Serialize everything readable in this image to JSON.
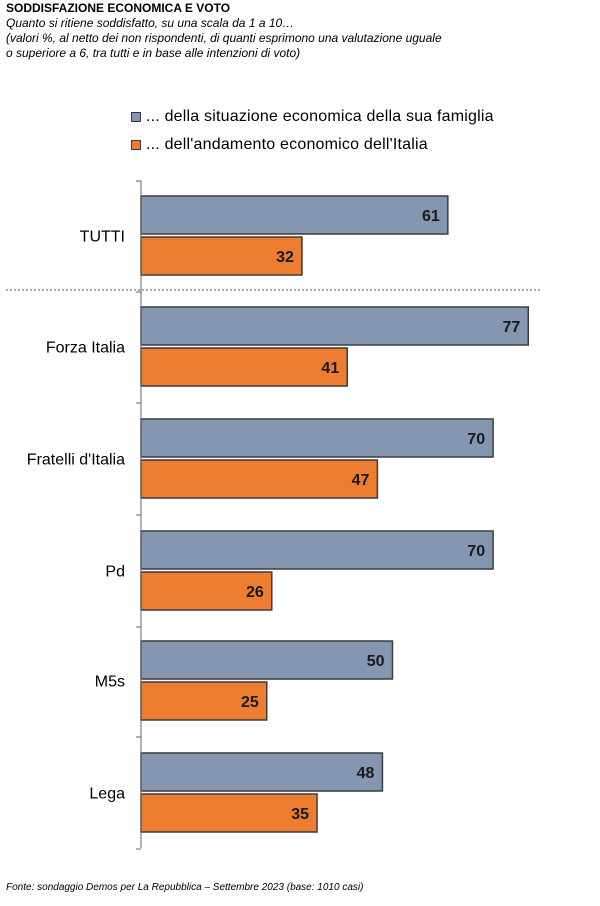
{
  "header": {
    "title": "SODDISFAZIONE ECONOMICA E VOTO",
    "subtitle_line1": "Quanto si ritiene soddisfatto, su una scala da 1 a 10…",
    "subtitle_line2": "(valori %, al netto dei non rispondenti, di quanti esprimono una valutazione uguale",
    "subtitle_line3": "o superiore a 6, tra tutti e in base alle intenzioni di voto)"
  },
  "footer": {
    "source": "Fonte: sondaggio Demos per La Repubblica – Settembre 2023 (base: 1010 casi)"
  },
  "chart_data": {
    "type": "bar",
    "orientation": "horizontal",
    "categories": [
      "TUTTI",
      "Forza Italia",
      "Fratelli d'Italia",
      "Pd",
      "M5s",
      "Lega"
    ],
    "series": [
      {
        "name": "... della situazione economica della sua famiglia",
        "color": "#8496b0",
        "values": [
          61,
          77,
          70,
          70,
          50,
          48
        ]
      },
      {
        "name": "... dell'andamento economico dell'Italia",
        "color": "#ed7d31",
        "values": [
          32,
          41,
          47,
          26,
          25,
          35
        ]
      }
    ],
    "xlim": [
      0,
      80
    ],
    "grid": false,
    "legend_position": "top",
    "data_labels": true
  }
}
